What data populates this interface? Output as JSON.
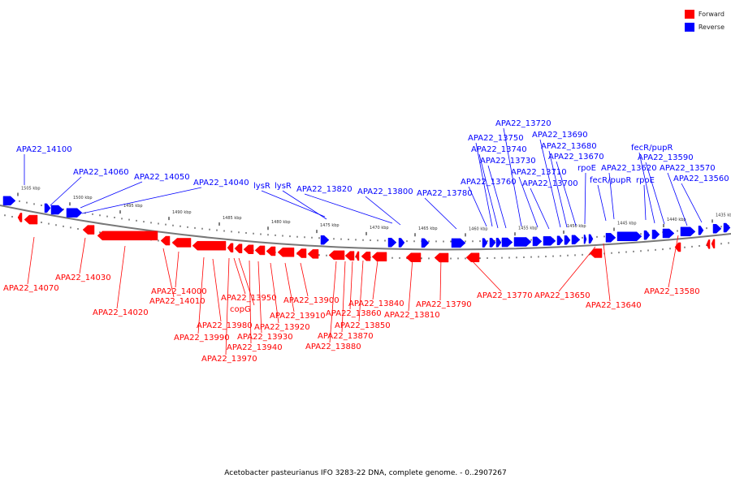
{
  "colors": {
    "forward": "#ff0000",
    "reverse": "#0000ff",
    "backbone": "#777777"
  },
  "legend": {
    "forward": "Forward",
    "reverse": "Reverse"
  },
  "caption": "Acetobacter pasteurianus IFO 3283-22 DNA, complete genome. - 0..2907267",
  "scale_labels": [
    "1505 kbp",
    "1500 kbp",
    "1495 kbp",
    "1490 kbp",
    "1485 kbp",
    "1480 kbp",
    "1475 kbp",
    "1470 kbp",
    "1465 kbp",
    "1460 kbp",
    "1455 kbp",
    "1450 kbp",
    "1445 kbp",
    "1440 kbp",
    "1435 kbp"
  ],
  "reverse_genes": [
    {
      "label": "APA22_14100"
    },
    {
      "label": "APA22_14060"
    },
    {
      "label": "APA22_14050"
    },
    {
      "label": "APA22_14040"
    },
    {
      "label": "lysR"
    },
    {
      "label": "lysR"
    },
    {
      "label": "APA22_13820"
    },
    {
      "label": "APA22_13800"
    },
    {
      "label": "APA22_13780"
    },
    {
      "label": "APA22_13760"
    },
    {
      "label": "APA22_13750"
    },
    {
      "label": "APA22_13740"
    },
    {
      "label": "APA22_13730"
    },
    {
      "label": "APA22_13720"
    },
    {
      "label": "APA22_13710"
    },
    {
      "label": "APA22_13700"
    },
    {
      "label": "APA22_13690"
    },
    {
      "label": "APA22_13680"
    },
    {
      "label": "APA22_13670"
    },
    {
      "label": "rpoE"
    },
    {
      "label": "fecR/pupR"
    },
    {
      "label": "APA22_13620"
    },
    {
      "label": "rpoE"
    },
    {
      "label": "fecR/pupR"
    },
    {
      "label": "APA22_13590"
    },
    {
      "label": "APA22_13570"
    },
    {
      "label": "APA22_13560"
    }
  ],
  "forward_genes": [
    {
      "label": "APA22_14070"
    },
    {
      "label": "APA22_14030"
    },
    {
      "label": "APA22_14020"
    },
    {
      "label": "APA22_14010"
    },
    {
      "label": "APA22_14000"
    },
    {
      "label": "APA22_13990"
    },
    {
      "label": "APA22_13980"
    },
    {
      "label": "APA22_13970"
    },
    {
      "label": "copG"
    },
    {
      "label": "APA22_13950"
    },
    {
      "label": "APA22_13940"
    },
    {
      "label": "APA22_13930"
    },
    {
      "label": "APA22_13920"
    },
    {
      "label": "APA22_13910"
    },
    {
      "label": "APA22_13900"
    },
    {
      "label": "APA22_13880"
    },
    {
      "label": "APA22_13870"
    },
    {
      "label": "APA22_13860"
    },
    {
      "label": "APA22_13850"
    },
    {
      "label": "APA22_13840"
    },
    {
      "label": "APA22_13810"
    },
    {
      "label": "APA22_13790"
    },
    {
      "label": "APA22_13770"
    },
    {
      "label": "APA22_13650"
    },
    {
      "label": "APA22_13640"
    },
    {
      "label": "APA22_13580"
    }
  ]
}
